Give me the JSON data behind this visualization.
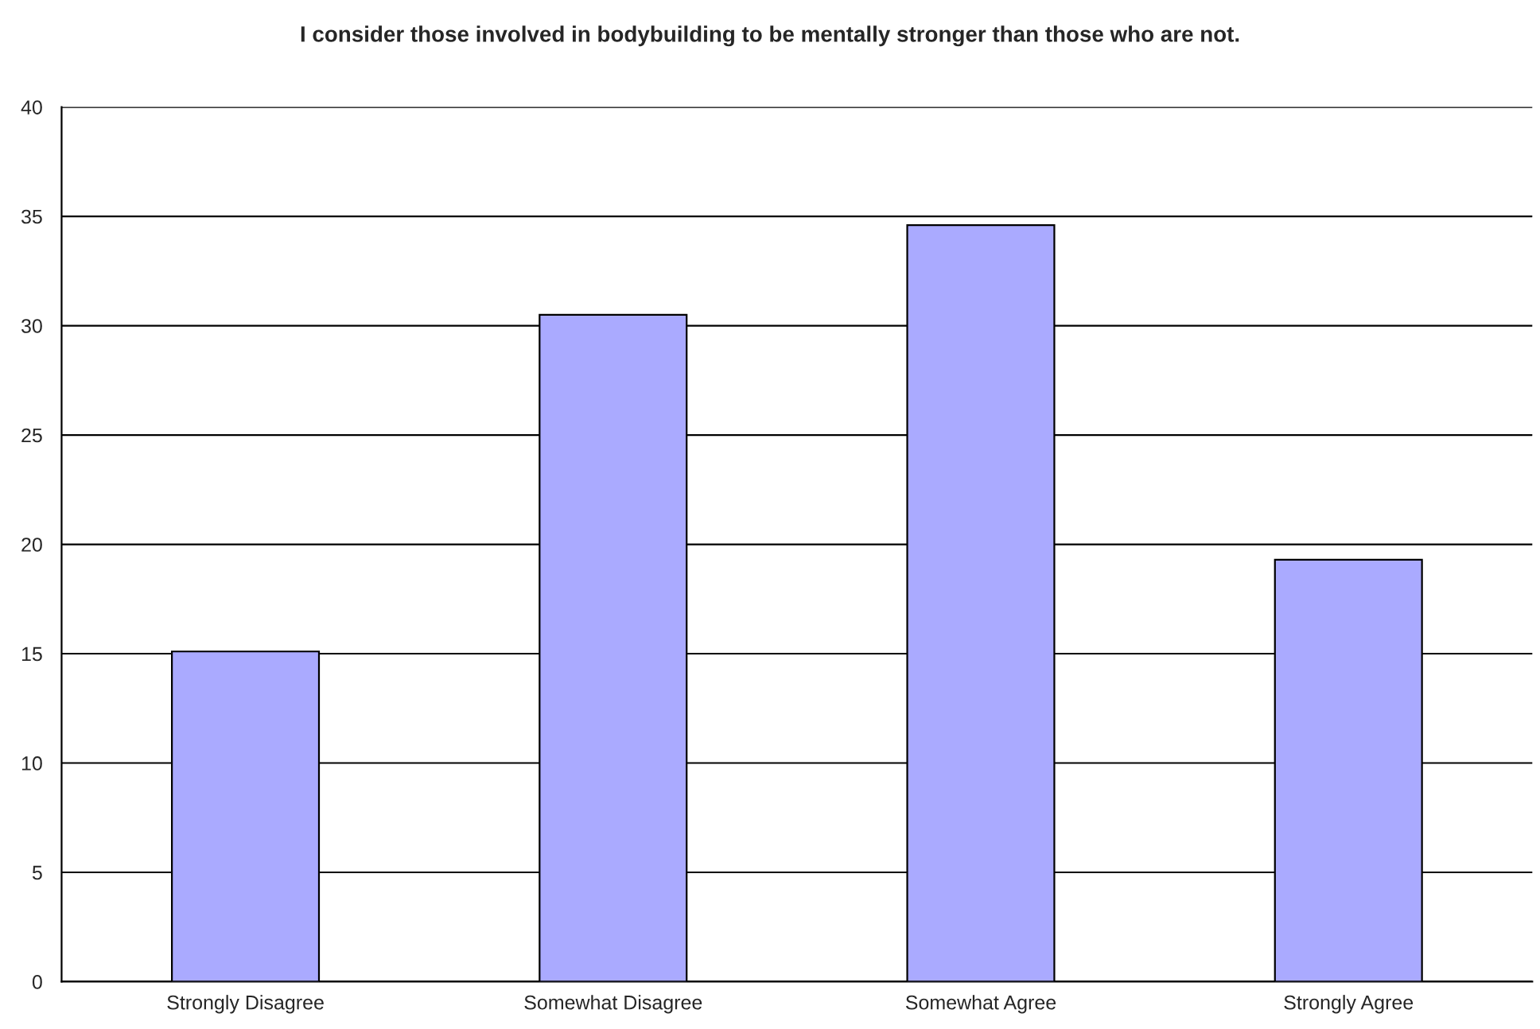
{
  "chart_data": {
    "type": "bar",
    "title": "I consider those involved in bodybuilding to be mentally stronger than those who are not.",
    "categories": [
      "Strongly Disagree",
      "Somewhat Disagree",
      "Somewhat Agree",
      "Strongly Agree"
    ],
    "values": [
      15.1,
      30.5,
      34.6,
      19.3
    ],
    "color": "#aaaaff",
    "ylim": [
      0,
      40
    ],
    "yticks": [
      0,
      5,
      10,
      15,
      20,
      25,
      30,
      35,
      40
    ],
    "grid": "y"
  }
}
